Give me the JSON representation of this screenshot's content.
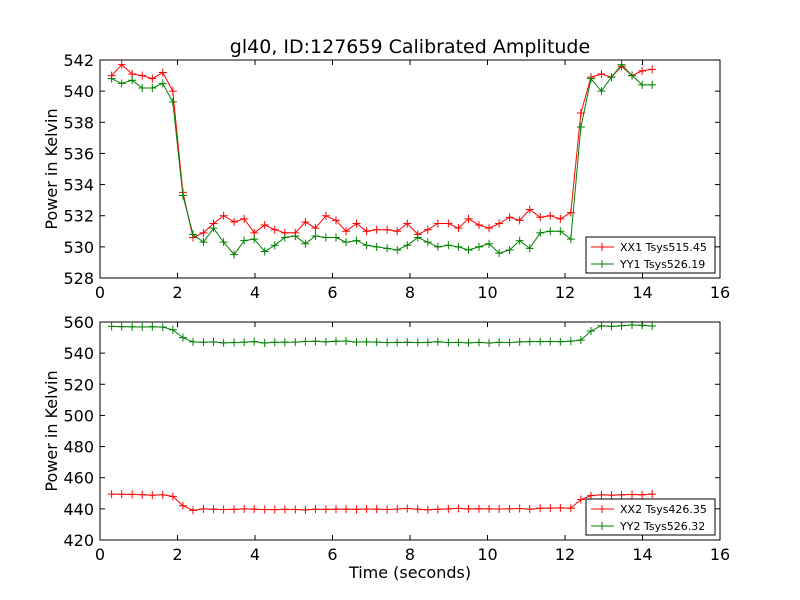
{
  "figure_title": "gl40, ID:127659 Calibrated Amplitude",
  "colors": {
    "red": "#ff0000",
    "green": "#008000"
  },
  "chart_data": [
    {
      "type": "line",
      "title": "gl40, ID:127659 Calibrated Amplitude",
      "xlabel": "",
      "ylabel": "Power in Kelvin",
      "xlim": [
        0,
        16
      ],
      "ylim": [
        528,
        542
      ],
      "xticks": [
        0,
        2,
        4,
        6,
        8,
        10,
        12,
        14,
        16
      ],
      "yticks": [
        528,
        530,
        532,
        534,
        536,
        538,
        540,
        542
      ],
      "legend_position": "lower-right",
      "x": [
        0.3,
        0.56,
        0.83,
        1.09,
        1.35,
        1.62,
        1.88,
        2.14,
        2.4,
        2.67,
        2.93,
        3.19,
        3.46,
        3.72,
        3.98,
        4.25,
        4.51,
        4.77,
        5.04,
        5.3,
        5.56,
        5.83,
        6.09,
        6.35,
        6.62,
        6.88,
        7.14,
        7.41,
        7.67,
        7.93,
        8.2,
        8.46,
        8.72,
        8.99,
        9.25,
        9.51,
        9.78,
        10.04,
        10.3,
        10.57,
        10.83,
        11.09,
        11.36,
        11.62,
        11.88,
        12.15,
        12.41,
        12.67,
        12.94,
        13.2,
        13.46,
        13.73,
        13.99,
        14.25
      ],
      "series": [
        {
          "name": "XX1 Tsys515.45",
          "color": "#ff0000",
          "values": [
            541.0,
            541.7,
            541.1,
            541.0,
            540.8,
            541.2,
            540.0,
            533.5,
            530.6,
            530.9,
            531.5,
            532.0,
            531.6,
            531.8,
            530.9,
            531.4,
            531.1,
            530.9,
            530.9,
            531.6,
            531.2,
            532.0,
            531.7,
            531.0,
            531.5,
            531.0,
            531.1,
            531.1,
            531.0,
            531.5,
            530.8,
            531.1,
            531.5,
            531.5,
            531.2,
            531.8,
            531.4,
            531.2,
            531.5,
            531.9,
            531.7,
            532.4,
            531.9,
            532.0,
            531.8,
            532.2,
            538.6,
            540.9,
            541.1,
            540.9,
            541.6,
            541.0,
            541.3,
            541.4
          ]
        },
        {
          "name": "YY1 Tsys526.19",
          "color": "#008000",
          "values": [
            540.8,
            540.5,
            540.7,
            540.2,
            540.2,
            540.5,
            539.3,
            533.3,
            530.8,
            530.3,
            531.2,
            530.3,
            529.5,
            530.4,
            530.5,
            529.7,
            530.1,
            530.6,
            530.7,
            530.2,
            530.7,
            530.6,
            530.6,
            530.3,
            530.4,
            530.1,
            530.0,
            529.9,
            529.8,
            530.1,
            530.6,
            530.3,
            530.0,
            530.1,
            530.0,
            529.8,
            530.0,
            530.2,
            529.6,
            529.8,
            530.4,
            529.9,
            530.9,
            531.0,
            531.0,
            530.5,
            537.7,
            540.8,
            540.0,
            540.9,
            541.7,
            541.0,
            540.4,
            540.4
          ]
        }
      ]
    },
    {
      "type": "line",
      "title": "",
      "xlabel": "Time (seconds)",
      "ylabel": "Power in Kelvin",
      "xlim": [
        0,
        16
      ],
      "ylim": [
        420,
        560
      ],
      "xticks": [
        0,
        2,
        4,
        6,
        8,
        10,
        12,
        14,
        16
      ],
      "yticks": [
        420,
        440,
        460,
        480,
        500,
        520,
        540,
        560
      ],
      "legend_position": "lower-right",
      "x": [
        0.3,
        0.56,
        0.83,
        1.09,
        1.35,
        1.62,
        1.88,
        2.14,
        2.4,
        2.67,
        2.93,
        3.19,
        3.46,
        3.72,
        3.98,
        4.25,
        4.51,
        4.77,
        5.04,
        5.3,
        5.56,
        5.83,
        6.09,
        6.35,
        6.62,
        6.88,
        7.14,
        7.41,
        7.67,
        7.93,
        8.2,
        8.46,
        8.72,
        8.99,
        9.25,
        9.51,
        9.78,
        10.04,
        10.3,
        10.57,
        10.83,
        11.09,
        11.36,
        11.62,
        11.88,
        12.15,
        12.41,
        12.67,
        12.94,
        13.2,
        13.46,
        13.73,
        13.99,
        14.25
      ],
      "series": [
        {
          "name": "XX2 Tsys426.35",
          "color": "#ff0000",
          "values": [
            449.5,
            449.4,
            449.3,
            449.1,
            448.8,
            449.0,
            448.0,
            442.0,
            439.0,
            440.0,
            439.8,
            439.6,
            439.7,
            440.0,
            439.8,
            439.6,
            439.5,
            439.7,
            439.6,
            439.3,
            439.8,
            439.7,
            439.8,
            439.8,
            439.7,
            439.9,
            439.8,
            439.6,
            439.9,
            440.2,
            439.8,
            439.4,
            439.7,
            440.0,
            440.3,
            440.0,
            440.1,
            440.0,
            439.9,
            440.0,
            440.2,
            439.8,
            440.4,
            440.5,
            440.6,
            440.4,
            446.0,
            448.5,
            449.0,
            448.8,
            449.0,
            449.2,
            449.0,
            449.5
          ]
        },
        {
          "name": "YY2 Tsys526.32",
          "color": "#008000",
          "values": [
            557.2,
            557.0,
            556.9,
            556.8,
            557.0,
            556.7,
            555.0,
            550.0,
            547.2,
            547.0,
            547.2,
            546.6,
            546.8,
            547.0,
            547.4,
            546.5,
            547.0,
            547.0,
            547.1,
            547.5,
            547.6,
            547.2,
            547.6,
            547.8,
            547.1,
            547.2,
            547.1,
            546.8,
            546.9,
            547.0,
            546.8,
            546.9,
            547.3,
            546.8,
            546.9,
            546.6,
            546.9,
            546.5,
            547.0,
            546.8,
            547.2,
            547.4,
            547.4,
            547.5,
            547.3,
            547.7,
            548.4,
            554.2,
            557.6,
            557.2,
            557.6,
            558.1,
            557.9,
            557.4
          ]
        }
      ]
    }
  ]
}
